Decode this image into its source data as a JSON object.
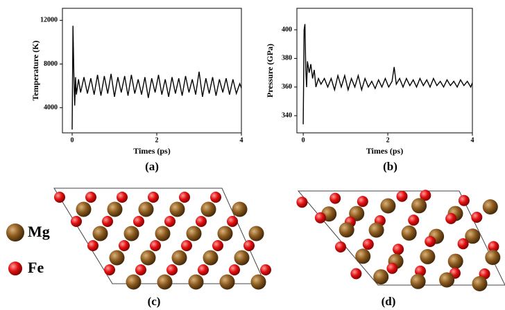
{
  "chart_data": [
    {
      "type": "line",
      "panel_label": "(a)",
      "xlabel": "Times (ps)",
      "ylabel": "Temperature (K)",
      "color": "#000000",
      "xlim": [
        -0.23,
        4
      ],
      "ylim": [
        1700,
        13100
      ],
      "xticks": [
        0,
        2,
        4
      ],
      "yticks": [
        4000,
        8000,
        12000
      ],
      "x": [
        0,
        0.02,
        0.04,
        0.06,
        0.08,
        0.1,
        0.15,
        0.2,
        0.28,
        0.36,
        0.44,
        0.52,
        0.6,
        0.68,
        0.76,
        0.84,
        0.92,
        1.0,
        1.08,
        1.16,
        1.24,
        1.32,
        1.4,
        1.48,
        1.56,
        1.64,
        1.72,
        1.8,
        1.88,
        1.96,
        2.04,
        2.12,
        2.2,
        2.28,
        2.36,
        2.44,
        2.52,
        2.6,
        2.68,
        2.76,
        2.84,
        2.92,
        3.0,
        3.08,
        3.16,
        3.24,
        3.32,
        3.4,
        3.48,
        3.56,
        3.64,
        3.72,
        3.8,
        3.88,
        3.96,
        4.0
      ],
      "values": [
        2000,
        11500,
        7000,
        4200,
        6800,
        5200,
        6600,
        5400,
        6800,
        5300,
        6700,
        5200,
        7000,
        5100,
        6900,
        5300,
        7100,
        5000,
        6800,
        5400,
        6900,
        5100,
        7000,
        5300,
        6600,
        5200,
        6800,
        4900,
        6700,
        5400,
        7000,
        5200,
        6600,
        5000,
        6800,
        5300,
        6700,
        5100,
        6900,
        5400,
        6600,
        5200,
        7300,
        5000,
        6700,
        5300,
        6800,
        5100,
        6600,
        5400,
        6700,
        5200,
        6600,
        5300,
        6200,
        5800
      ]
    },
    {
      "type": "line",
      "panel_label": "(b)",
      "xlabel": "Times (ps)",
      "ylabel": "Pressure (GPa)",
      "color": "#000000",
      "xlim": [
        -0.15,
        4
      ],
      "ylim": [
        328,
        415
      ],
      "xticks": [
        0,
        2,
        4
      ],
      "yticks": [
        340,
        360,
        380,
        400
      ],
      "x": [
        0,
        0.02,
        0.04,
        0.06,
        0.08,
        0.1,
        0.14,
        0.18,
        0.22,
        0.26,
        0.3,
        0.36,
        0.42,
        0.5,
        0.58,
        0.66,
        0.74,
        0.82,
        0.9,
        0.98,
        1.06,
        1.14,
        1.22,
        1.3,
        1.38,
        1.46,
        1.54,
        1.62,
        1.7,
        1.78,
        1.86,
        1.94,
        2.02,
        2.1,
        2.15,
        2.2,
        2.28,
        2.36,
        2.44,
        2.52,
        2.6,
        2.68,
        2.76,
        2.84,
        2.92,
        3.0,
        3.08,
        3.16,
        3.24,
        3.32,
        3.4,
        3.48,
        3.56,
        3.64,
        3.72,
        3.8,
        3.88,
        3.96,
        4.0
      ],
      "values": [
        334,
        400,
        404,
        372,
        360,
        378,
        370,
        376,
        366,
        372,
        360,
        366,
        362,
        366,
        360,
        366,
        358,
        368,
        360,
        368,
        358,
        366,
        360,
        368,
        358,
        366,
        360,
        364,
        359,
        365,
        360,
        366,
        360,
        364,
        374,
        362,
        366,
        360,
        366,
        361,
        365,
        360,
        366,
        361,
        365,
        360,
        366,
        361,
        364,
        360,
        365,
        361,
        364,
        360,
        365,
        361,
        364,
        360,
        363
      ]
    }
  ],
  "structures": {
    "labels": [
      "(c)",
      "(d)"
    ],
    "legend": [
      "Mg",
      "Fe"
    ]
  }
}
